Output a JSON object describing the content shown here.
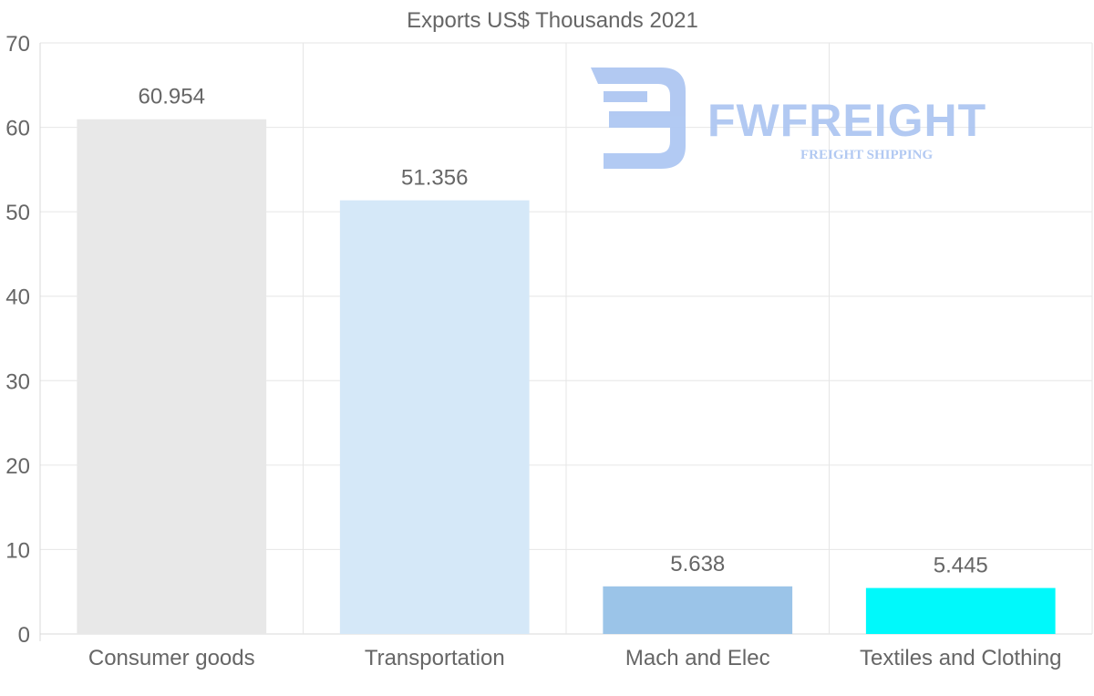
{
  "chart_data": {
    "type": "bar",
    "title": "Exports US$ Thousands 2021",
    "categories": [
      "Consumer goods",
      "Transportation",
      "Mach and Elec",
      "Textiles and Clothing"
    ],
    "values": [
      60.954,
      51.356,
      5.638,
      5.445
    ],
    "value_labels": [
      "60.954",
      "51.356",
      "5.638",
      "5.445"
    ],
    "bar_colors": [
      "#e8e8e8",
      "#d5e8f8",
      "#9bc4e8",
      "#00f9fb"
    ],
    "xlabel": "",
    "ylabel": "",
    "ylim": [
      0,
      70
    ],
    "yticks": [
      0,
      10,
      20,
      30,
      40,
      50,
      60,
      70
    ],
    "grid": true,
    "legend": "none"
  },
  "watermark": {
    "name": "FWFREIGHT",
    "tagline": "FREIGHT SHIPPING",
    "color": "#aec7f2"
  }
}
